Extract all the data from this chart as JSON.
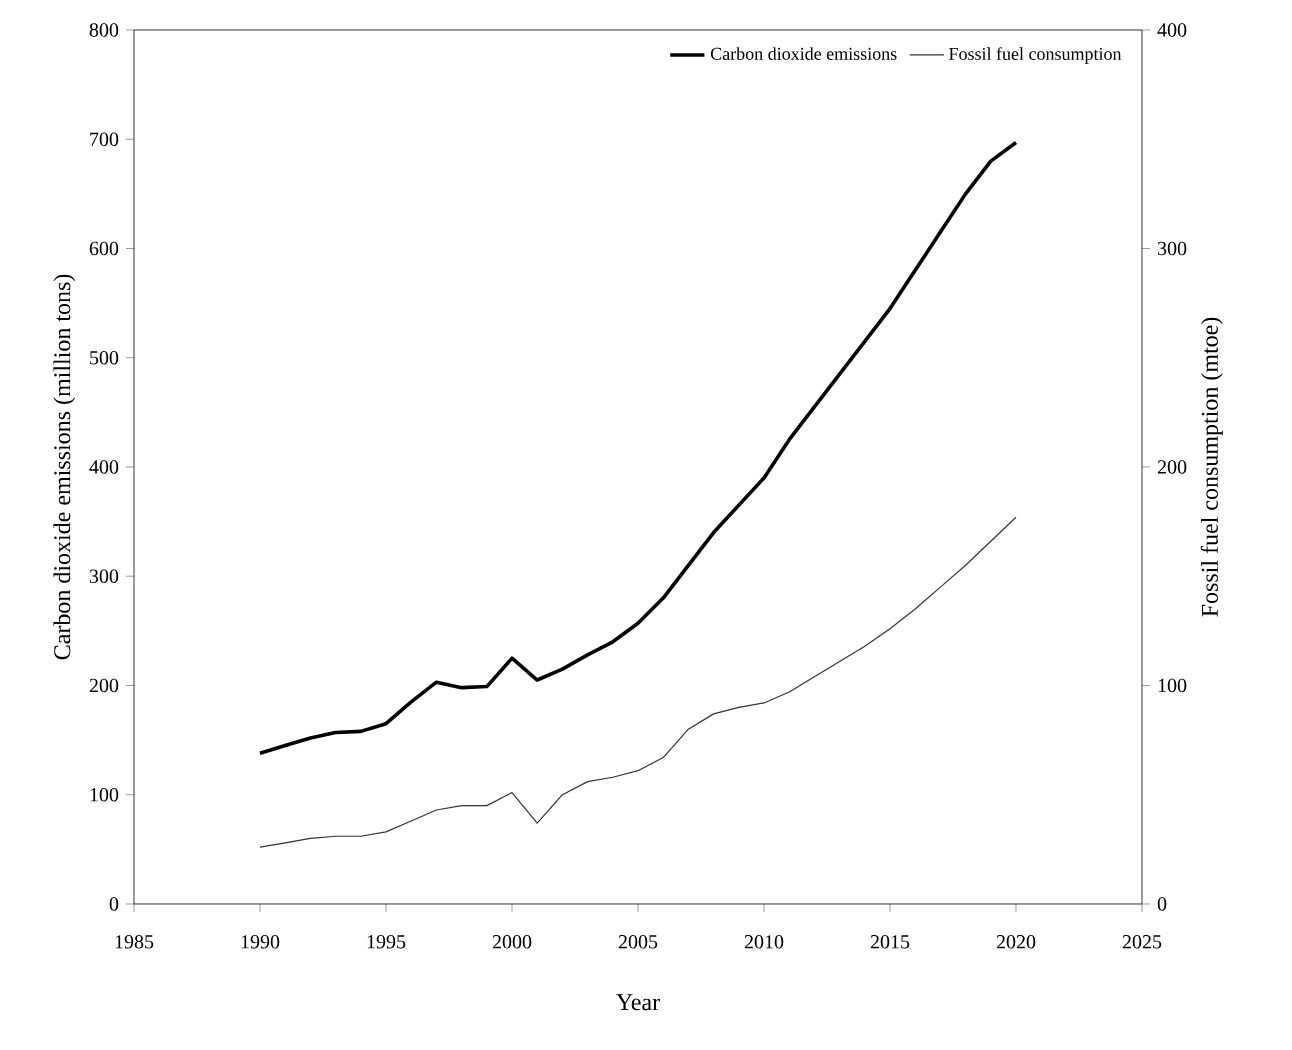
{
  "chart_data": {
    "type": "line",
    "xlabel": "Year",
    "ylabel": "Carbon dioxide emissions (million tons)",
    "y2label": "Fossil fuel consumption (mtoe)",
    "x": [
      1990,
      1991,
      1992,
      1993,
      1994,
      1995,
      1996,
      1997,
      1998,
      1999,
      2000,
      2001,
      2002,
      2003,
      2004,
      2005,
      2006,
      2007,
      2008,
      2009,
      2010,
      2011,
      2012,
      2013,
      2014,
      2015,
      2016,
      2017,
      2018,
      2019,
      2020
    ],
    "series": [
      {
        "name": "Carbon dioxide emissions",
        "color": "#000000",
        "values": [
          138,
          145,
          152,
          157,
          158,
          165,
          185,
          203,
          198,
          199,
          225,
          205,
          215,
          228,
          240,
          257,
          280,
          310,
          340,
          365,
          390,
          425,
          455,
          485,
          515,
          545,
          580,
          615,
          650,
          680,
          697
        ]
      },
      {
        "name": "Fossil fuel consumption",
        "color": "#333333",
        "axis": "y2",
        "values": [
          26,
          28,
          30,
          31,
          31,
          33,
          38,
          43,
          45,
          45,
          51,
          37,
          50,
          56,
          58,
          61,
          67,
          80,
          87,
          90,
          92,
          97,
          104,
          111,
          118,
          126,
          135,
          145,
          155,
          166,
          177
        ]
      }
    ],
    "xlim": [
      1985,
      2025
    ],
    "xticks": [
      1985,
      1990,
      1995,
      2000,
      2005,
      2010,
      2015,
      2020,
      2025
    ],
    "ylim": [
      0,
      800
    ],
    "yticks": [
      0,
      100,
      200,
      300,
      400,
      500,
      600,
      700,
      800
    ],
    "y2lim": [
      0,
      400
    ],
    "y2ticks": [
      0,
      100,
      200,
      300,
      400
    ],
    "grid": false,
    "legend": "top right",
    "marker": "none",
    "line_style": "solid"
  }
}
